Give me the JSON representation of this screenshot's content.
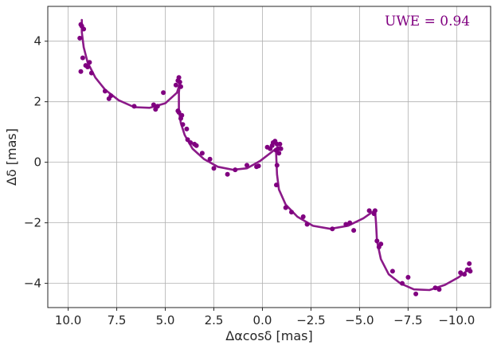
{
  "chart_data": {
    "type": "scatter",
    "xlabel": "Δαcosδ [mas]",
    "ylabel": "Δδ [mas]",
    "xlim": [
      11.05,
      -11.75
    ],
    "ylim": [
      -4.8,
      5.15
    ],
    "x_inverted": true,
    "grid": true,
    "xticks": [
      10.0,
      7.5,
      5.0,
      2.5,
      0.0,
      -2.5,
      -5.0,
      -7.5,
      -10.0
    ],
    "xtick_labels": [
      "10.0",
      "7.5",
      "5.0",
      "2.5",
      "0.0",
      "−2.5",
      "−5.0",
      "−7.5",
      "−10.0"
    ],
    "yticks": [
      4,
      2,
      0,
      -2,
      -4
    ],
    "ytick_labels": [
      "4",
      "2",
      "0",
      "−2",
      "−4"
    ],
    "annotation": "UWE = 0.94",
    "colors": {
      "points": "#800080",
      "fit": "#8b1a89",
      "grid": "#b0b0b0"
    },
    "fit_curve": {
      "x": [
        9.3,
        9.3,
        9.2,
        9.0,
        8.6,
        8.1,
        7.4,
        6.6,
        5.8,
        5.0,
        4.4,
        4.25,
        4.3,
        4.3,
        4.2,
        4.0,
        3.6,
        3.0,
        2.3,
        1.5,
        0.8,
        0.1,
        -0.5,
        -0.7,
        -0.72,
        -0.75,
        -0.85,
        -1.2,
        -1.8,
        -2.6,
        -3.5,
        -4.4,
        -5.2,
        -5.65,
        -5.8,
        -5.85,
        -5.9,
        -6.1,
        -6.5,
        -7.1,
        -7.8,
        -8.6,
        -9.4,
        -10.1,
        -10.7
      ],
      "y": [
        4.7,
        4.3,
        3.8,
        3.3,
        2.8,
        2.4,
        2.05,
        1.82,
        1.8,
        1.95,
        2.3,
        2.6,
        2.3,
        1.7,
        1.3,
        0.9,
        0.45,
        0.1,
        -0.15,
        -0.25,
        -0.2,
        0.05,
        0.35,
        0.45,
        0.1,
        -0.4,
        -0.9,
        -1.4,
        -1.8,
        -2.1,
        -2.2,
        -2.1,
        -1.85,
        -1.65,
        -1.6,
        -2.0,
        -2.6,
        -3.2,
        -3.7,
        -4.0,
        -4.2,
        -4.22,
        -4.05,
        -3.8,
        -3.5
      ]
    },
    "points": {
      "x": [
        9.35,
        9.3,
        9.2,
        9.4,
        9.25,
        9.1,
        9.0,
        8.9,
        9.35,
        8.8,
        8.1,
        7.9,
        7.8,
        6.6,
        5.6,
        5.5,
        5.4,
        5.1,
        4.45,
        4.35,
        4.3,
        4.25,
        4.2,
        4.35,
        4.3,
        4.15,
        4.2,
        4.1,
        3.9,
        3.85,
        3.7,
        3.5,
        3.4,
        3.1,
        2.7,
        2.5,
        1.8,
        1.4,
        0.8,
        0.3,
        0.2,
        -0.25,
        -0.4,
        -0.5,
        -0.55,
        -0.65,
        -0.75,
        -0.7,
        -0.8,
        -0.9,
        -0.95,
        -0.85,
        -0.75,
        -0.72,
        -1.2,
        -1.5,
        -2.1,
        -2.3,
        -3.6,
        -4.3,
        -4.5,
        -4.7,
        -5.5,
        -5.8,
        -5.75,
        -5.9,
        -6.0,
        -6.1,
        -6.7,
        -7.2,
        -7.5,
        -7.9,
        -8.9,
        -9.1,
        -10.2,
        -10.4,
        -10.55,
        -10.65,
        -10.7
      ],
      "y": [
        4.55,
        4.5,
        4.4,
        4.1,
        3.45,
        3.2,
        3.15,
        3.3,
        3.0,
        2.95,
        2.35,
        2.1,
        2.2,
        1.85,
        1.9,
        1.75,
        1.85,
        2.3,
        2.55,
        2.7,
        2.8,
        2.65,
        2.5,
        1.7,
        1.65,
        1.55,
        1.45,
        1.25,
        1.1,
        0.75,
        0.65,
        0.6,
        0.55,
        0.3,
        0.1,
        -0.2,
        -0.4,
        -0.25,
        -0.1,
        -0.15,
        -0.12,
        0.5,
        0.45,
        0.55,
        0.65,
        0.7,
        0.6,
        0.4,
        0.45,
        0.6,
        0.45,
        0.3,
        -0.1,
        -0.75,
        -1.5,
        -1.65,
        -1.8,
        -2.05,
        -2.2,
        -2.05,
        -2.0,
        -2.25,
        -1.6,
        -1.6,
        -1.7,
        -2.6,
        -2.8,
        -2.7,
        -3.6,
        -4.0,
        -3.8,
        -4.35,
        -4.15,
        -4.2,
        -3.65,
        -3.7,
        -3.55,
        -3.35,
        -3.6
      ]
    }
  }
}
